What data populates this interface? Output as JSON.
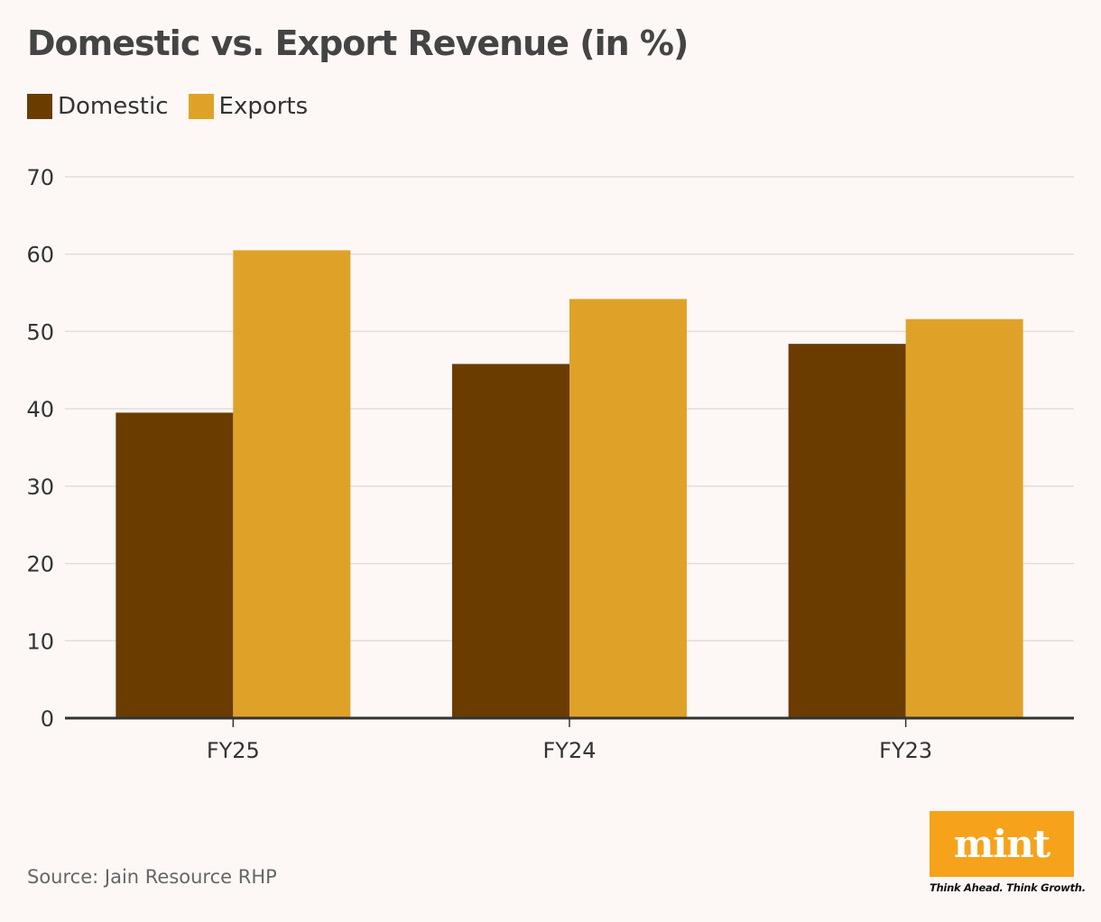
{
  "chart_data": {
    "type": "bar",
    "title": "Domestic vs. Export Revenue (in %)",
    "categories": [
      "FY25",
      "FY24",
      "FY23"
    ],
    "series": [
      {
        "name": "Domestic",
        "values": [
          39.5,
          45.8,
          48.4
        ],
        "color": "#6b3c00"
      },
      {
        "name": "Exports",
        "values": [
          60.5,
          54.2,
          51.6
        ],
        "color": "#dfa228"
      }
    ],
    "xlabel": "",
    "ylabel": "",
    "ylim": [
      0,
      70
    ],
    "yticks": [
      0,
      10,
      20,
      30,
      40,
      50,
      60,
      70
    ],
    "grid": true,
    "legend": "top-left"
  },
  "source": "Source: Jain Resource RHP",
  "logo": {
    "word": "mint",
    "tagline": "Think Ahead. Think Growth.",
    "color": "#f7a21b"
  }
}
